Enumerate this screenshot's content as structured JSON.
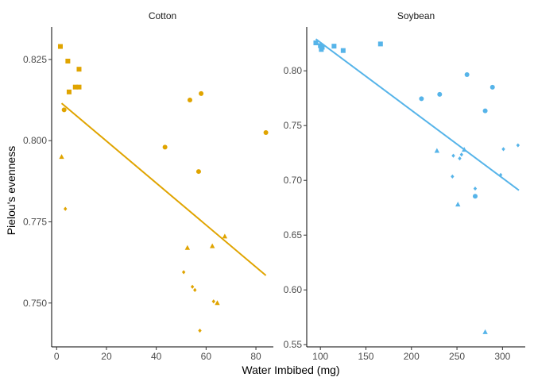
{
  "chart_data": {
    "type": "scatter",
    "shared_ylabel": "Pielou's evenness",
    "shared_xlabel": "Water Imbibed (mg)",
    "panels": [
      {
        "title": "Cotton",
        "color": "#E0A400",
        "xlim": [
          -2,
          87
        ],
        "ylim": [
          0.7365,
          0.835
        ],
        "xticks": [
          0,
          20,
          40,
          60,
          80
        ],
        "yticks": [
          0.75,
          0.775,
          0.8,
          0.825
        ],
        "ytick_labels": [
          "0.750",
          "0.775",
          "0.800",
          "0.825"
        ],
        "trend": {
          "x": [
            2,
            84
          ],
          "y": [
            0.8115,
            0.7585
          ]
        },
        "points": [
          {
            "x": 1.5,
            "y": 0.829,
            "shape": "square"
          },
          {
            "x": 4.5,
            "y": 0.8245,
            "shape": "square"
          },
          {
            "x": 9,
            "y": 0.822,
            "shape": "square"
          },
          {
            "x": 7.5,
            "y": 0.8165,
            "shape": "square"
          },
          {
            "x": 9,
            "y": 0.8165,
            "shape": "square"
          },
          {
            "x": 5,
            "y": 0.815,
            "shape": "square"
          },
          {
            "x": 3,
            "y": 0.8095,
            "shape": "circle"
          },
          {
            "x": 58,
            "y": 0.8145,
            "shape": "circle"
          },
          {
            "x": 53.5,
            "y": 0.8125,
            "shape": "circle"
          },
          {
            "x": 84,
            "y": 0.8025,
            "shape": "circle"
          },
          {
            "x": 43.5,
            "y": 0.798,
            "shape": "circle"
          },
          {
            "x": 57,
            "y": 0.7905,
            "shape": "circle"
          },
          {
            "x": 2,
            "y": 0.795,
            "shape": "triangle"
          },
          {
            "x": 67.5,
            "y": 0.7705,
            "shape": "triangle"
          },
          {
            "x": 62.5,
            "y": 0.7675,
            "shape": "triangle"
          },
          {
            "x": 52.5,
            "y": 0.767,
            "shape": "triangle"
          },
          {
            "x": 64.5,
            "y": 0.75,
            "shape": "triangle"
          },
          {
            "x": 3.5,
            "y": 0.779,
            "shape": "diamond"
          },
          {
            "x": 51,
            "y": 0.7595,
            "shape": "diamond"
          },
          {
            "x": 54.5,
            "y": 0.755,
            "shape": "diamond"
          },
          {
            "x": 55.5,
            "y": 0.754,
            "shape": "diamond"
          },
          {
            "x": 63,
            "y": 0.7505,
            "shape": "diamond"
          },
          {
            "x": 57.5,
            "y": 0.7415,
            "shape": "diamond"
          }
        ]
      },
      {
        "title": "Soybean",
        "color": "#56B4E9",
        "xlim": [
          85,
          325
        ],
        "ylim": [
          0.548,
          0.84
        ],
        "xticks": [
          100,
          150,
          200,
          250,
          300
        ],
        "yticks": [
          0.55,
          0.6,
          0.65,
          0.7,
          0.75,
          0.8
        ],
        "ytick_labels": [
          "0.55",
          "0.60",
          "0.65",
          "0.70",
          "0.75",
          "0.80"
        ],
        "trend": {
          "x": [
            95,
            318
          ],
          "y": [
            0.829,
            0.691
          ]
        },
        "points": [
          {
            "x": 95,
            "y": 0.8255,
            "shape": "square"
          },
          {
            "x": 100,
            "y": 0.823,
            "shape": "square"
          },
          {
            "x": 102,
            "y": 0.8215,
            "shape": "square"
          },
          {
            "x": 101,
            "y": 0.8195,
            "shape": "square"
          },
          {
            "x": 115,
            "y": 0.8225,
            "shape": "square"
          },
          {
            "x": 125,
            "y": 0.8185,
            "shape": "square"
          },
          {
            "x": 166,
            "y": 0.8245,
            "shape": "square"
          },
          {
            "x": 261,
            "y": 0.7965,
            "shape": "circle"
          },
          {
            "x": 289,
            "y": 0.785,
            "shape": "circle"
          },
          {
            "x": 231,
            "y": 0.7785,
            "shape": "circle"
          },
          {
            "x": 211,
            "y": 0.7745,
            "shape": "circle"
          },
          {
            "x": 281,
            "y": 0.7635,
            "shape": "circle"
          },
          {
            "x": 270,
            "y": 0.6855,
            "shape": "circle"
          },
          {
            "x": 258,
            "y": 0.728,
            "shape": "triangle"
          },
          {
            "x": 228,
            "y": 0.727,
            "shape": "triangle"
          },
          {
            "x": 251,
            "y": 0.678,
            "shape": "triangle"
          },
          {
            "x": 281,
            "y": 0.5615,
            "shape": "triangle"
          },
          {
            "x": 317,
            "y": 0.732,
            "shape": "diamond"
          },
          {
            "x": 301,
            "y": 0.7285,
            "shape": "diamond"
          },
          {
            "x": 255,
            "y": 0.7235,
            "shape": "diamond"
          },
          {
            "x": 246,
            "y": 0.7225,
            "shape": "diamond"
          },
          {
            "x": 253,
            "y": 0.72,
            "shape": "diamond"
          },
          {
            "x": 298,
            "y": 0.705,
            "shape": "diamond"
          },
          {
            "x": 245,
            "y": 0.7035,
            "shape": "diamond"
          },
          {
            "x": 270,
            "y": 0.6925,
            "shape": "diamond"
          }
        ]
      }
    ]
  }
}
